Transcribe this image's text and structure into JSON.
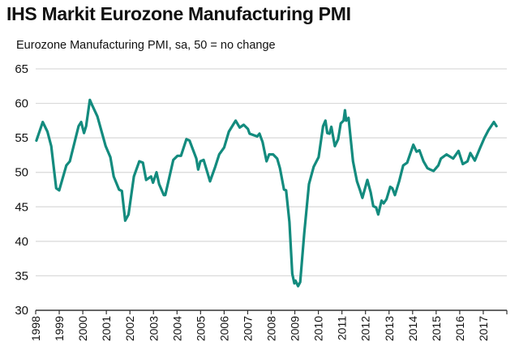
{
  "chart_data": {
    "type": "line",
    "title": "IHS Markit Eurozone Manufacturing PMI",
    "subtitle": "Eurozone Manufacturing PMI, sa, 50 = no change",
    "xlabel": "",
    "ylabel": "",
    "xlim": [
      1998,
      2018
    ],
    "ylim": [
      30,
      65
    ],
    "grid": true,
    "y_ticks": [
      "30",
      "35",
      "40",
      "45",
      "50",
      "55",
      "60",
      "65"
    ],
    "x_ticks": [
      "1998",
      "1999",
      "2000",
      "2001",
      "2002",
      "2003",
      "2004",
      "2005",
      "2006",
      "2007",
      "2008",
      "2009",
      "2010",
      "2011",
      "2012",
      "2013",
      "2014",
      "2015",
      "2016",
      "2017"
    ],
    "series": [
      {
        "name": "Eurozone Manufacturing PMI",
        "color": "#138b7e",
        "x": [
          1998.03,
          1998.3,
          1998.5,
          1998.66,
          1998.87,
          1999.0,
          1999.3,
          1999.45,
          1999.82,
          1999.93,
          2000.05,
          2000.14,
          2000.3,
          2000.39,
          2000.62,
          2000.97,
          2001.17,
          2001.31,
          2001.54,
          2001.66,
          2001.8,
          2001.94,
          2002.17,
          2002.4,
          2002.55,
          2002.69,
          2002.9,
          2002.98,
          2003.13,
          2003.24,
          2003.44,
          2003.5,
          2003.84,
          2004.02,
          2004.17,
          2004.4,
          2004.53,
          2004.82,
          2004.9,
          2004.99,
          2005.13,
          2005.4,
          2005.62,
          2005.79,
          2006.0,
          2006.2,
          2006.49,
          2006.66,
          2006.83,
          2007.01,
          2007.08,
          2007.4,
          2007.5,
          2007.63,
          2007.8,
          2007.91,
          2008.08,
          2008.25,
          2008.37,
          2008.54,
          2008.63,
          2008.77,
          2008.89,
          2008.98,
          2009.03,
          2009.14,
          2009.23,
          2009.4,
          2009.6,
          2009.8,
          2010.01,
          2010.2,
          2010.3,
          2010.38,
          2010.47,
          2010.55,
          2010.7,
          2010.84,
          2010.95,
          2011.07,
          2011.13,
          2011.18,
          2011.28,
          2011.47,
          2011.64,
          2011.76,
          2011.87,
          2012.08,
          2012.22,
          2012.33,
          2012.45,
          2012.54,
          2012.68,
          2012.77,
          2012.89,
          2013.05,
          2013.14,
          2013.25,
          2013.43,
          2013.6,
          2013.77,
          2014.03,
          2014.17,
          2014.29,
          2014.46,
          2014.63,
          2014.75,
          2014.89,
          2015.09,
          2015.2,
          2015.44,
          2015.72,
          2015.95,
          2016.13,
          2016.33,
          2016.45,
          2016.64,
          2016.87,
          2017.05,
          2017.22,
          2017.45,
          2017.56
        ],
        "values": [
          54.6,
          57.3,
          55.9,
          53.8,
          47.7,
          47.4,
          51.0,
          51.6,
          56.7,
          57.3,
          55.7,
          56.7,
          60.5,
          59.8,
          58.1,
          53.8,
          52.2,
          49.4,
          47.5,
          47.3,
          43.0,
          43.9,
          49.4,
          51.6,
          51.4,
          48.9,
          49.4,
          48.5,
          50.0,
          48.3,
          46.7,
          46.7,
          51.8,
          52.4,
          52.4,
          54.8,
          54.6,
          52.0,
          50.4,
          51.6,
          51.8,
          48.7,
          50.8,
          52.6,
          53.6,
          55.9,
          57.5,
          56.5,
          56.9,
          56.3,
          55.6,
          55.2,
          55.6,
          54.4,
          51.6,
          52.6,
          52.6,
          52.0,
          50.6,
          47.5,
          47.4,
          42.8,
          35.3,
          33.9,
          34.3,
          33.5,
          34.1,
          41.2,
          48.3,
          50.8,
          52.2,
          56.7,
          57.5,
          55.7,
          55.6,
          56.6,
          53.8,
          54.8,
          57.1,
          57.5,
          59.0,
          57.5,
          57.9,
          51.6,
          48.7,
          47.5,
          46.3,
          48.9,
          47.1,
          45.1,
          44.9,
          43.9,
          45.9,
          45.5,
          46.1,
          47.9,
          47.7,
          46.7,
          48.7,
          51.0,
          51.4,
          54.0,
          53.0,
          53.2,
          51.6,
          50.6,
          50.4,
          50.2,
          51.0,
          52.0,
          52.6,
          52.0,
          53.1,
          51.2,
          51.6,
          52.8,
          51.7,
          53.6,
          55.0,
          56.1,
          57.3,
          56.7
        ]
      }
    ]
  }
}
